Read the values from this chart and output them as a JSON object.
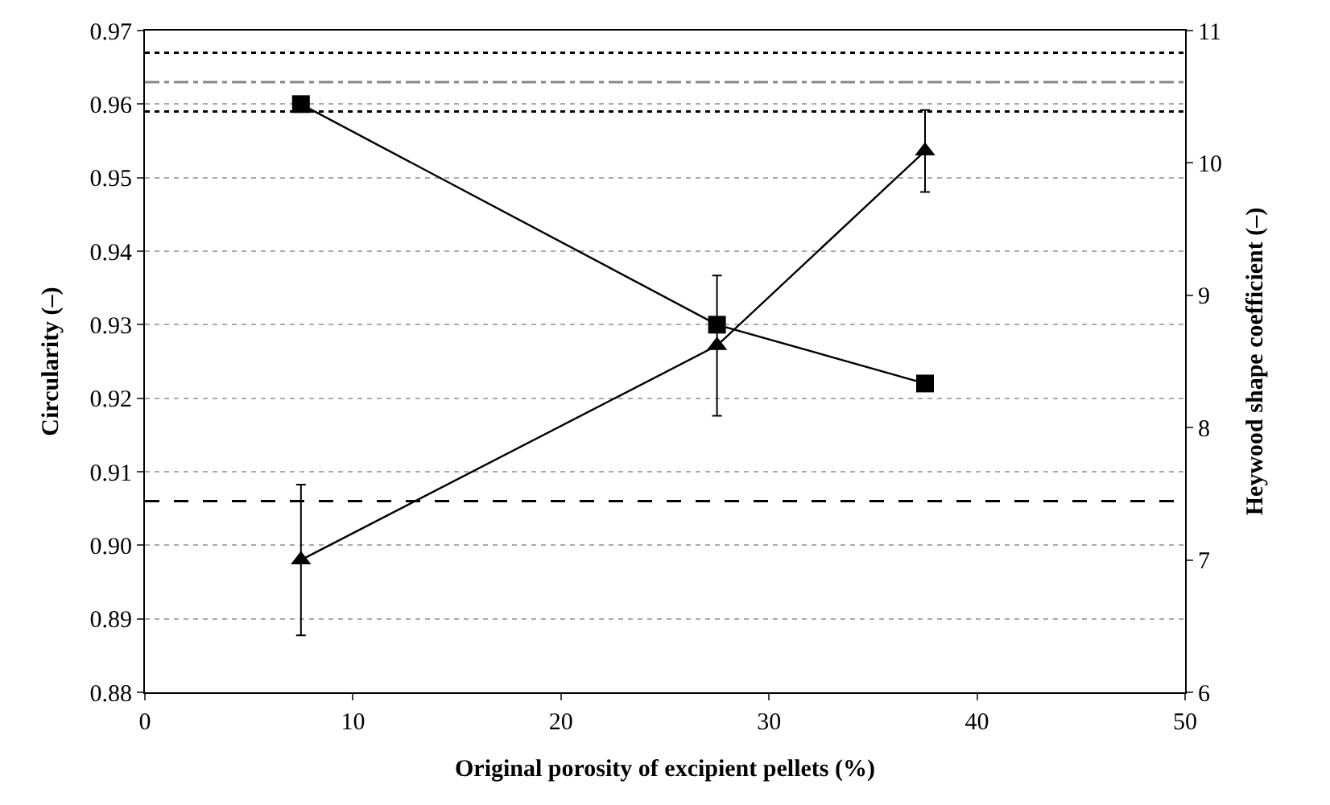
{
  "chart_data": {
    "type": "line",
    "xlabel": "Original porosity of excipient pellets (%)",
    "ylabel": "Circularity (–)",
    "y2label": "Heywood shape coefficient (–)",
    "x": [
      7.5,
      27.5,
      37.5
    ],
    "series": [
      {
        "color": "#000000",
        "marker": "square",
        "values": [
          0.96,
          0.93,
          0.922
        ]
      },
      {
        "color": "#000000",
        "marker": "triangle",
        "axis": "y2",
        "values": [
          7.0,
          8.62,
          10.09
        ],
        "errors": [
          0.57,
          0.53,
          0.31
        ]
      }
    ],
    "xlim": [
      0,
      50
    ],
    "xticks": [
      0,
      10,
      20,
      30,
      40,
      50
    ],
    "ylim": [
      0.88,
      0.97
    ],
    "yticks": [
      {
        "value": 0.88,
        "label": "0.88"
      },
      {
        "value": 0.89,
        "label": "0.89"
      },
      {
        "value": 0.9,
        "label": "0.90"
      },
      {
        "value": 0.91,
        "label": "0.91"
      },
      {
        "value": 0.92,
        "label": "0.92"
      },
      {
        "value": 0.93,
        "label": "0.93"
      },
      {
        "value": 0.94,
        "label": "0.94"
      },
      {
        "value": 0.95,
        "label": "0.95"
      },
      {
        "value": 0.96,
        "label": "0.96"
      },
      {
        "value": 0.97,
        "label": "0.97"
      }
    ],
    "y2lim": [
      6,
      11
    ],
    "y2ticks": [
      6,
      7,
      8,
      9,
      10,
      11
    ],
    "ref_lines": [
      {
        "axis": "y",
        "value": 0.967,
        "color": "#000000",
        "line_style": "dotted"
      },
      {
        "axis": "y",
        "value": 0.963,
        "color": "#888888",
        "line_style": "dashdot"
      },
      {
        "axis": "y",
        "value": 0.959,
        "color": "#000000",
        "line_style": "dotted"
      },
      {
        "axis": "y",
        "value": 0.906,
        "color": "#000000",
        "line_style": "dashed"
      }
    ],
    "grid": "y",
    "legend": false
  }
}
